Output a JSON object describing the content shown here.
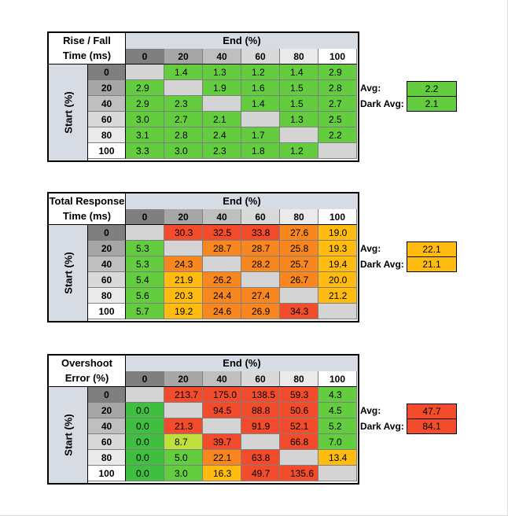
{
  "colors": {
    "green": "#63cc3f",
    "dark_green": "#3fbe3f",
    "yellow_green": "#bfe03a",
    "yellow": "#ffd400",
    "amber": "#ffbb10",
    "orange": "#f8871f",
    "red": "#f24c2c",
    "empty": "#d4d4d4",
    "header_blue": "#d6dbe4"
  },
  "tables": [
    {
      "title_line1": "Rise / Fall",
      "title_line2": "Time (ms)",
      "end_label": "End (%)",
      "start_label": "Start (%)",
      "columns": [
        "0",
        "20",
        "40",
        "60",
        "80",
        "100"
      ],
      "rows": [
        "0",
        "20",
        "40",
        "60",
        "80",
        "100"
      ],
      "cells": [
        [
          "",
          "1.4",
          "1.3",
          "1.2",
          "1.4",
          "2.9"
        ],
        [
          "2.9",
          "",
          "1.9",
          "1.6",
          "1.5",
          "2.8"
        ],
        [
          "2.9",
          "2.3",
          "",
          "1.4",
          "1.5",
          "2.7"
        ],
        [
          "3.0",
          "2.7",
          "2.1",
          "",
          "1.3",
          "2.5"
        ],
        [
          "3.1",
          "2.8",
          "2.4",
          "1.7",
          "",
          "2.2"
        ],
        [
          "3.3",
          "3.0",
          "2.3",
          "1.8",
          "1.2",
          ""
        ]
      ],
      "colors": [
        [
          "empty",
          "green",
          "green",
          "green",
          "green",
          "green"
        ],
        [
          "green",
          "empty",
          "green",
          "green",
          "green",
          "green"
        ],
        [
          "green",
          "green",
          "empty",
          "green",
          "green",
          "green"
        ],
        [
          "green",
          "green",
          "green",
          "empty",
          "green",
          "green"
        ],
        [
          "green",
          "green",
          "green",
          "green",
          "empty",
          "green"
        ],
        [
          "green",
          "green",
          "green",
          "green",
          "green",
          "empty"
        ]
      ],
      "avg_label": "Avg:",
      "avg_value": "2.2",
      "avg_color": "green",
      "dark_avg_label": "Dark Avg:",
      "dark_avg_value": "2.1",
      "dark_avg_color": "green"
    },
    {
      "title_line1": "Total Response",
      "title_line2": "Time (ms)",
      "end_label": "End (%)",
      "start_label": "Start (%)",
      "columns": [
        "0",
        "20",
        "40",
        "60",
        "80",
        "100"
      ],
      "rows": [
        "0",
        "20",
        "40",
        "60",
        "80",
        "100"
      ],
      "cells": [
        [
          "",
          "30.3",
          "32.5",
          "33.8",
          "27.6",
          "19.0"
        ],
        [
          "5.3",
          "",
          "28.7",
          "28.7",
          "25.8",
          "19.3"
        ],
        [
          "5.3",
          "24.3",
          "",
          "28.2",
          "25.7",
          "19.4"
        ],
        [
          "5.4",
          "21.9",
          "26.2",
          "",
          "26.7",
          "20.0"
        ],
        [
          "5.6",
          "20.3",
          "24.4",
          "27.4",
          "",
          "21.2"
        ],
        [
          "5.7",
          "19.2",
          "24.6",
          "26.9",
          "34.3",
          ""
        ]
      ],
      "colors": [
        [
          "empty",
          "red",
          "red",
          "red",
          "orange",
          "amber"
        ],
        [
          "green",
          "empty",
          "orange",
          "orange",
          "orange",
          "amber"
        ],
        [
          "green",
          "orange",
          "empty",
          "orange",
          "orange",
          "amber"
        ],
        [
          "green",
          "amber",
          "orange",
          "empty",
          "orange",
          "amber"
        ],
        [
          "green",
          "amber",
          "orange",
          "orange",
          "empty",
          "amber"
        ],
        [
          "green",
          "amber",
          "orange",
          "orange",
          "red",
          "empty"
        ]
      ],
      "avg_label": "Avg:",
      "avg_value": "22.1",
      "avg_color": "amber",
      "dark_avg_label": "Dark Avg:",
      "dark_avg_value": "21.1",
      "dark_avg_color": "amber"
    },
    {
      "title_line1": "Overshoot",
      "title_line2": "Error (%)",
      "end_label": "End (%)",
      "start_label": "Start (%)",
      "columns": [
        "0",
        "20",
        "40",
        "60",
        "80",
        "100"
      ],
      "rows": [
        "0",
        "20",
        "40",
        "60",
        "80",
        "100"
      ],
      "cells": [
        [
          "",
          "213.7",
          "175.0",
          "138.5",
          "59.3",
          "4.3"
        ],
        [
          "0.0",
          "",
          "94.5",
          "88.8",
          "50.6",
          "4.5"
        ],
        [
          "0.0",
          "21.3",
          "",
          "91.9",
          "52.1",
          "5.2"
        ],
        [
          "0.0",
          "8.7",
          "39.7",
          "",
          "66.8",
          "7.0"
        ],
        [
          "0.0",
          "5.0",
          "22.1",
          "63.8",
          "",
          "13.4"
        ],
        [
          "0.0",
          "3.0",
          "16.3",
          "49.7",
          "135.6",
          ""
        ]
      ],
      "colors": [
        [
          "empty",
          "red",
          "red",
          "red",
          "red",
          "green"
        ],
        [
          "dark_green",
          "empty",
          "red",
          "red",
          "red",
          "green"
        ],
        [
          "dark_green",
          "red",
          "empty",
          "red",
          "red",
          "green"
        ],
        [
          "dark_green",
          "yellow_green",
          "red",
          "empty",
          "red",
          "green"
        ],
        [
          "dark_green",
          "green",
          "orange",
          "red",
          "empty",
          "amber"
        ],
        [
          "dark_green",
          "green",
          "amber",
          "red",
          "red",
          "empty"
        ]
      ],
      "avg_label": "Avg:",
      "avg_value": "47.7",
      "avg_color": "red",
      "dark_avg_label": "Dark Avg:",
      "dark_avg_value": "84.1",
      "dark_avg_color": "red"
    }
  ]
}
